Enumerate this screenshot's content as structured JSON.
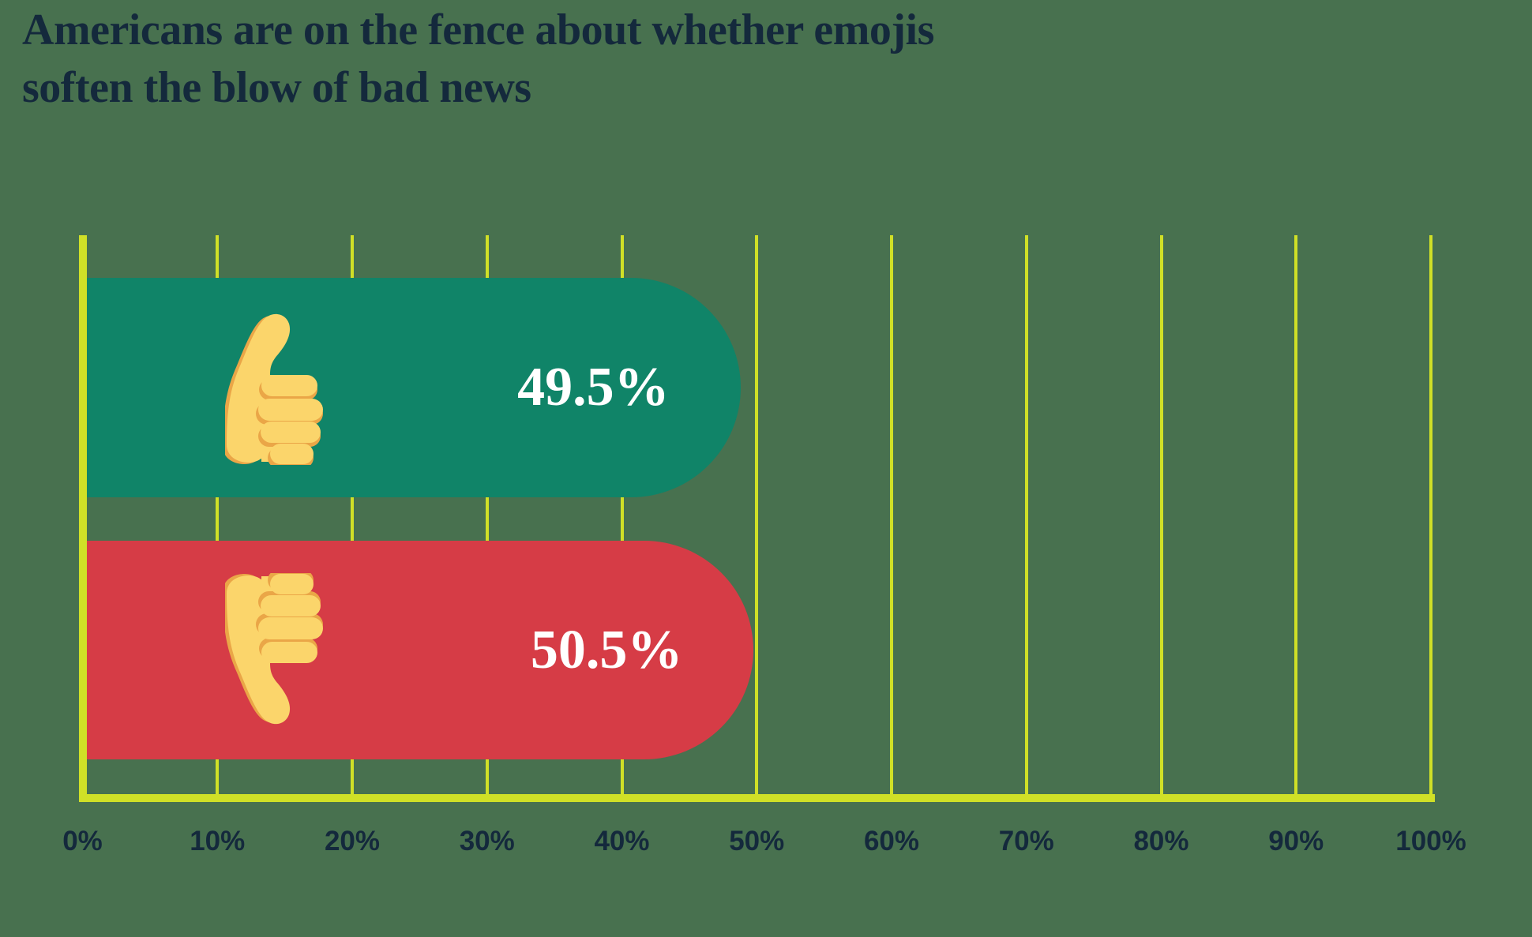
{
  "title": {
    "line1": "Americans are on the fence about whether emojis",
    "line2": "soften the blow of bad news"
  },
  "chart_data": {
    "type": "bar",
    "orientation": "horizontal",
    "title": "Americans are on the fence about whether emojis soften the blow of bad news",
    "categories": [
      "thumbs-up",
      "thumbs-down"
    ],
    "values": [
      49.5,
      50.5
    ],
    "value_labels": [
      "49.5%",
      "50.5%"
    ],
    "bar_colors": [
      "#108468",
      "#D63C46"
    ],
    "icons": [
      "thumbs-up-emoji",
      "thumbs-down-emoji"
    ],
    "x_tick_labels": [
      "0%",
      "10%",
      "20%",
      "30%",
      "40%",
      "50%",
      "60%",
      "70%",
      "80%",
      "90%",
      "100%"
    ],
    "xlim": [
      0,
      100
    ],
    "grid": true,
    "legend": false
  },
  "colors": {
    "background": "#48714F",
    "grid": "#D0E027",
    "text": "#14293C",
    "value_text": "#FFFFFF",
    "bar_positive": "#108468",
    "bar_negative": "#D63C46",
    "emoji_fill": "#FBD56B",
    "emoji_shade": "#EAA647"
  }
}
